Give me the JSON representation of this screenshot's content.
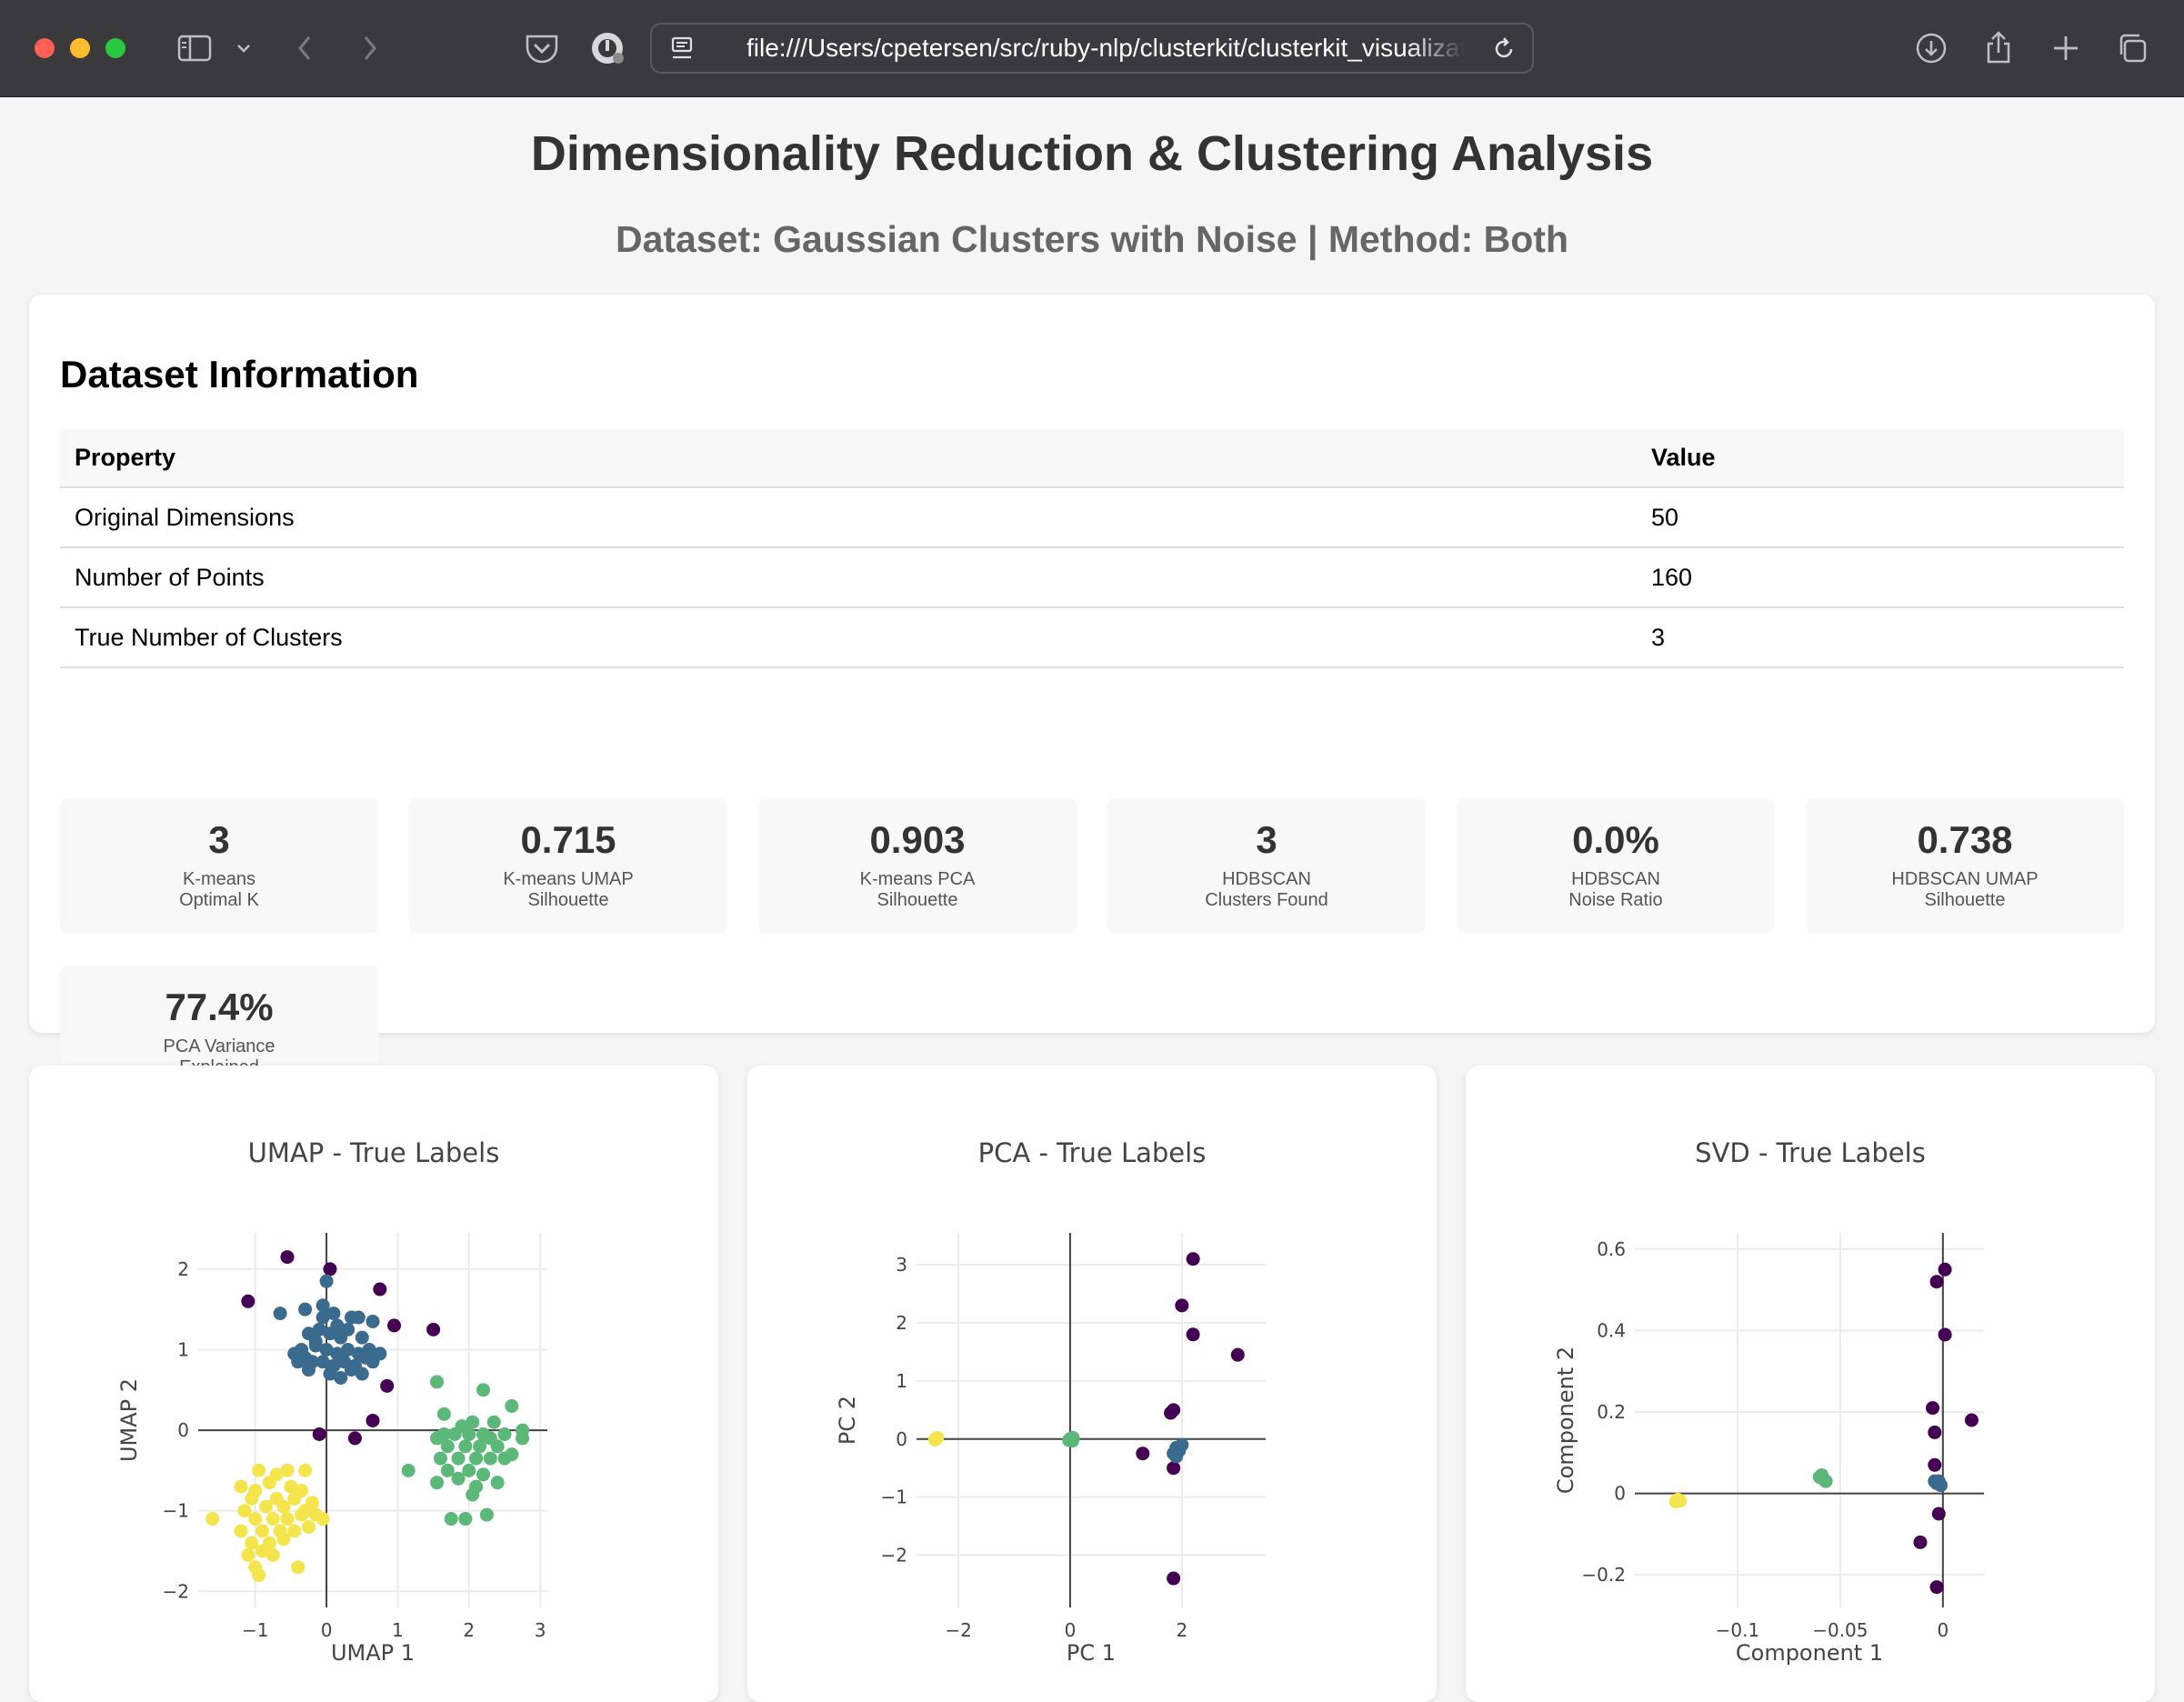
{
  "browser": {
    "url": "file:///Users/cpetersen/src/ruby-nlp/clusterkit/clusterkit_visualization"
  },
  "header": {
    "title": "Dimensionality Reduction & Clustering Analysis",
    "subtitle": "Dataset: Gaussian Clusters with Noise | Method: Both"
  },
  "info": {
    "title": "Dataset Information",
    "columns": [
      "Property",
      "Value"
    ],
    "rows": [
      [
        "Original Dimensions",
        "50"
      ],
      [
        "Number of Points",
        "160"
      ],
      [
        "True Number of Clusters",
        "3"
      ]
    ]
  },
  "stats": [
    {
      "value": "3",
      "label": "K-means\nOptimal K"
    },
    {
      "value": "0.715",
      "label": "K-means UMAP\nSilhouette"
    },
    {
      "value": "0.903",
      "label": "K-means PCA\nSilhouette"
    },
    {
      "value": "3",
      "label": "HDBSCAN\nClusters Found"
    },
    {
      "value": "0.0%",
      "label": "HDBSCAN\nNoise Ratio"
    },
    {
      "value": "0.738",
      "label": "HDBSCAN UMAP\nSilhouette"
    },
    {
      "value": "77.4%",
      "label": "PCA Variance\nExplained"
    }
  ],
  "colors": {
    "noise": "#440154",
    "cluster_0": "#3b6a8f",
    "cluster_1": "#5cb879",
    "cluster_2": "#f4e54c"
  },
  "chart_data": [
    {
      "type": "scatter",
      "title": "UMAP - True Labels",
      "xlabel": "UMAP 1",
      "ylabel": "UMAP 2",
      "xlim": [
        -1.8,
        3.1
      ],
      "ylim": [
        -2.2,
        2.45
      ],
      "xticks": [
        -1,
        0,
        1,
        2,
        3
      ],
      "xtick_labels": [
        "−1",
        "0",
        "1",
        "2",
        "3"
      ],
      "yticks": [
        -2,
        -1,
        0,
        1,
        2
      ],
      "ytick_labels": [
        "−2",
        "−1",
        "0",
        "1",
        "2"
      ],
      "series": [
        {
          "color": "#440154",
          "points": [
            [
              -1.1,
              1.6
            ],
            [
              -0.55,
              2.15
            ],
            [
              0.05,
              2.0
            ],
            [
              0.75,
              1.75
            ],
            [
              0.95,
              1.3
            ],
            [
              1.5,
              1.25
            ],
            [
              0.85,
              0.55
            ],
            [
              0.65,
              0.12
            ],
            [
              0.4,
              -0.1
            ],
            [
              -0.1,
              -0.05
            ]
          ]
        },
        {
          "color": "#3b6a8f",
          "points": [
            [
              -0.65,
              1.45
            ],
            [
              -0.3,
              1.5
            ],
            [
              -0.05,
              1.55
            ],
            [
              0.1,
              1.45
            ],
            [
              0.35,
              1.4
            ],
            [
              0.45,
              1.4
            ],
            [
              0.65,
              1.35
            ],
            [
              -0.25,
              1.2
            ],
            [
              -0.1,
              1.25
            ],
            [
              0.05,
              1.2
            ],
            [
              0.2,
              1.15
            ],
            [
              0.5,
              1.15
            ],
            [
              -0.35,
              1.0
            ],
            [
              -0.15,
              1.05
            ],
            [
              0.0,
              1.0
            ],
            [
              0.15,
              0.95
            ],
            [
              0.3,
              1.0
            ],
            [
              0.45,
              0.95
            ],
            [
              0.6,
              1.0
            ],
            [
              -0.4,
              0.85
            ],
            [
              -0.2,
              0.85
            ],
            [
              -0.05,
              0.85
            ],
            [
              0.1,
              0.8
            ],
            [
              0.25,
              0.85
            ],
            [
              0.4,
              0.8
            ],
            [
              0.55,
              0.9
            ],
            [
              0.75,
              0.95
            ],
            [
              -0.45,
              0.95
            ],
            [
              -0.3,
              0.9
            ],
            [
              0.2,
              0.65
            ],
            [
              0.35,
              0.75
            ],
            [
              0.0,
              1.85
            ],
            [
              -0.15,
              1.1
            ],
            [
              0.15,
              1.3
            ],
            [
              -0.05,
              1.4
            ],
            [
              0.3,
              1.25
            ],
            [
              -0.25,
              0.75
            ],
            [
              0.05,
              0.7
            ],
            [
              0.5,
              0.7
            ],
            [
              0.65,
              0.85
            ]
          ]
        },
        {
          "color": "#5cb879",
          "points": [
            [
              1.55,
              0.6
            ],
            [
              2.2,
              0.5
            ],
            [
              2.6,
              0.3
            ],
            [
              1.65,
              0.2
            ],
            [
              2.05,
              0.1
            ],
            [
              2.35,
              0.1
            ],
            [
              2.75,
              0.0
            ],
            [
              1.55,
              -0.1
            ],
            [
              1.8,
              -0.05
            ],
            [
              2.0,
              -0.05
            ],
            [
              2.2,
              -0.05
            ],
            [
              2.5,
              -0.05
            ],
            [
              1.7,
              -0.2
            ],
            [
              1.95,
              -0.2
            ],
            [
              2.15,
              -0.2
            ],
            [
              2.4,
              -0.2
            ],
            [
              2.75,
              -0.1
            ],
            [
              1.6,
              -0.35
            ],
            [
              1.85,
              -0.35
            ],
            [
              2.1,
              -0.35
            ],
            [
              2.3,
              -0.35
            ],
            [
              2.5,
              -0.35
            ],
            [
              1.15,
              -0.5
            ],
            [
              1.7,
              -0.5
            ],
            [
              2.0,
              -0.5
            ],
            [
              2.2,
              -0.55
            ],
            [
              1.55,
              -0.65
            ],
            [
              1.85,
              -0.6
            ],
            [
              2.4,
              -0.65
            ],
            [
              2.05,
              -0.8
            ],
            [
              1.75,
              -1.1
            ],
            [
              1.95,
              -1.1
            ],
            [
              2.25,
              -1.05
            ],
            [
              2.1,
              -0.7
            ],
            [
              2.3,
              -0.1
            ],
            [
              1.9,
              0.05
            ],
            [
              2.6,
              -0.3
            ],
            [
              1.65,
              -0.05
            ]
          ]
        },
        {
          "color": "#f4e54c",
          "points": [
            [
              -0.95,
              -0.5
            ],
            [
              -0.55,
              -0.5
            ],
            [
              -0.3,
              -0.5
            ],
            [
              -1.2,
              -0.7
            ],
            [
              -0.8,
              -0.65
            ],
            [
              -0.5,
              -0.7
            ],
            [
              -1.05,
              -0.85
            ],
            [
              -0.7,
              -0.85
            ],
            [
              -0.45,
              -0.85
            ],
            [
              -0.2,
              -0.9
            ],
            [
              -0.3,
              -1.0
            ],
            [
              -1.6,
              -1.1
            ],
            [
              -1.0,
              -1.1
            ],
            [
              -0.75,
              -1.1
            ],
            [
              -0.55,
              -1.1
            ],
            [
              -0.35,
              -1.05
            ],
            [
              -0.15,
              -1.05
            ],
            [
              -0.05,
              -1.1
            ],
            [
              -1.2,
              -1.25
            ],
            [
              -0.9,
              -1.25
            ],
            [
              -0.65,
              -1.25
            ],
            [
              -0.25,
              -1.2
            ],
            [
              -1.05,
              -1.4
            ],
            [
              -0.8,
              -1.4
            ],
            [
              -0.6,
              -1.35
            ],
            [
              -1.1,
              -1.55
            ],
            [
              -0.75,
              -1.55
            ],
            [
              -1.0,
              -1.7
            ],
            [
              -0.4,
              -1.7
            ],
            [
              -0.85,
              -0.95
            ],
            [
              -0.6,
              -0.95
            ],
            [
              -1.15,
              -1.0
            ],
            [
              -0.9,
              -1.5
            ],
            [
              -0.45,
              -1.25
            ],
            [
              -0.7,
              -0.55
            ],
            [
              -1.0,
              -0.75
            ],
            [
              -0.35,
              -0.75
            ],
            [
              -0.95,
              -1.8
            ]
          ]
        }
      ]
    },
    {
      "type": "scatter",
      "title": "PCA - True Labels",
      "xlabel": "PC 1",
      "ylabel": "PC 2",
      "xlim": [
        -2.75,
        3.5
      ],
      "ylim": [
        -2.9,
        3.55
      ],
      "xticks": [
        -2,
        0,
        2
      ],
      "xtick_labels": [
        "−2",
        "0",
        "2"
      ],
      "yticks": [
        -2,
        -1,
        0,
        1,
        2,
        3
      ],
      "ytick_labels": [
        "−2",
        "−1",
        "0",
        "1",
        "2",
        "3"
      ],
      "series": [
        {
          "color": "#440154",
          "points": [
            [
              2.2,
              3.1
            ],
            [
              2.0,
              2.3
            ],
            [
              2.2,
              1.8
            ],
            [
              3.0,
              1.45
            ],
            [
              1.85,
              0.5
            ],
            [
              1.8,
              0.45
            ],
            [
              1.3,
              -0.25
            ],
            [
              1.85,
              -0.5
            ],
            [
              1.85,
              -2.4
            ]
          ]
        },
        {
          "color": "#3b6a8f",
          "points": [
            [
              1.9,
              -0.15
            ],
            [
              1.95,
              -0.2
            ],
            [
              1.85,
              -0.25
            ],
            [
              2.0,
              -0.1
            ],
            [
              1.9,
              -0.3
            ]
          ]
        },
        {
          "color": "#5cb879",
          "points": [
            [
              0.0,
              0.0
            ],
            [
              0.05,
              0.02
            ],
            [
              -0.02,
              -0.02
            ],
            [
              0.04,
              -0.03
            ]
          ]
        },
        {
          "color": "#f4e54c",
          "points": [
            [
              -2.4,
              0.0
            ],
            [
              -2.38,
              0.02
            ],
            [
              -2.42,
              -0.01
            ]
          ]
        }
      ]
    },
    {
      "type": "scatter",
      "title": "SVD - True Labels",
      "xlabel": "Component 1",
      "ylabel": "Component 2",
      "xlim": [
        -0.15,
        0.02
      ],
      "ylim": [
        -0.28,
        0.64
      ],
      "xticks": [
        -0.1,
        -0.05,
        0
      ],
      "xtick_labels": [
        "−0.1",
        "−0.05",
        "0"
      ],
      "yticks": [
        -0.2,
        0,
        0.2,
        0.4,
        0.6
      ],
      "ytick_labels": [
        "−0.2",
        "0",
        "0.2",
        "0.4",
        "0.6"
      ],
      "series": [
        {
          "color": "#440154",
          "points": [
            [
              -0.003,
              0.52
            ],
            [
              0.001,
              0.55
            ],
            [
              0.001,
              0.39
            ],
            [
              -0.005,
              0.21
            ],
            [
              0.014,
              0.18
            ],
            [
              -0.004,
              0.15
            ],
            [
              -0.004,
              0.07
            ],
            [
              -0.002,
              -0.05
            ],
            [
              -0.011,
              -0.12
            ],
            [
              -0.003,
              -0.23
            ]
          ]
        },
        {
          "color": "#3b6a8f",
          "points": [
            [
              -0.002,
              0.03
            ],
            [
              -0.003,
              0.025
            ],
            [
              -0.001,
              0.02
            ],
            [
              -0.004,
              0.03
            ]
          ]
        },
        {
          "color": "#5cb879",
          "points": [
            [
              -0.058,
              0.035
            ],
            [
              -0.059,
              0.045
            ],
            [
              -0.057,
              0.03
            ],
            [
              -0.06,
              0.04
            ]
          ]
        },
        {
          "color": "#f4e54c",
          "points": [
            [
              -0.129,
              -0.015
            ],
            [
              -0.13,
              -0.02
            ],
            [
              -0.128,
              -0.018
            ]
          ]
        }
      ]
    }
  ]
}
